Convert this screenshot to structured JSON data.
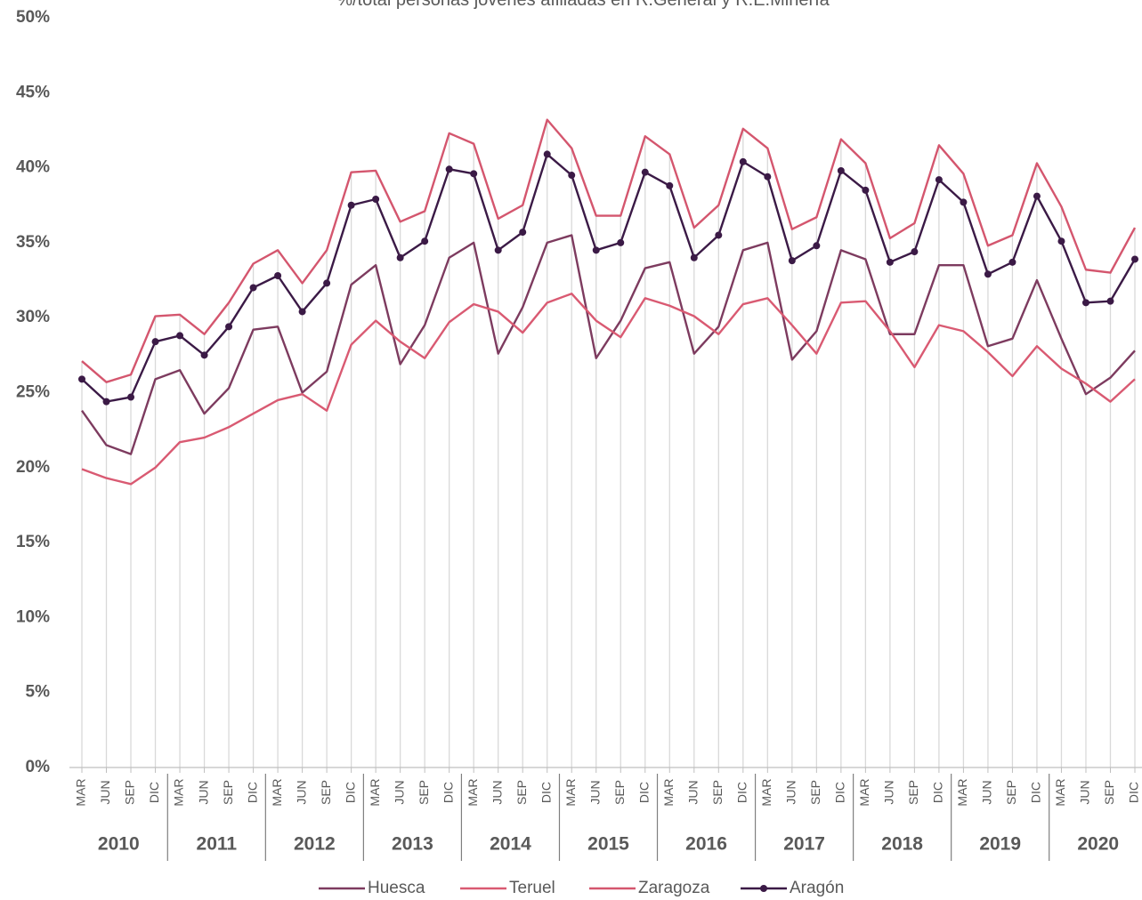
{
  "chart_data": {
    "type": "line",
    "title": "%/total personas jóvenes afiliadas en R.General y R.E.Minería",
    "categories": [
      "MAR",
      "JUN",
      "SEP",
      "DIC",
      "MAR",
      "JUN",
      "SEP",
      "DIC",
      "MAR",
      "JUN",
      "SEP",
      "DIC",
      "MAR",
      "JUN",
      "SEP",
      "DIC",
      "MAR",
      "JUN",
      "SEP",
      "DIC",
      "MAR",
      "JUN",
      "SEP",
      "DIC",
      "MAR",
      "JUN",
      "SEP",
      "DIC",
      "MAR",
      "JUN",
      "SEP",
      "DIC",
      "MAR",
      "JUN",
      "SEP",
      "DIC",
      "MAR",
      "JUN",
      "SEP",
      "DIC",
      "MAR",
      "JUN",
      "SEP",
      "DIC"
    ],
    "groups": [
      "2010",
      "2011",
      "2012",
      "2013",
      "2014",
      "2015",
      "2016",
      "2017",
      "2018",
      "2019",
      "2020"
    ],
    "series": [
      {
        "name": "Huesca",
        "color": "#7d3b5f",
        "values": [
          23.8,
          21.5,
          20.9,
          25.9,
          26.5,
          23.6,
          25.3,
          29.2,
          29.4,
          25.0,
          26.4,
          32.2,
          33.5,
          26.9,
          29.5,
          34.0,
          35.0,
          27.6,
          30.7,
          35.0,
          35.5,
          27.3,
          29.8,
          33.3,
          33.7,
          27.6,
          29.4,
          34.5,
          35.0,
          27.2,
          29.1,
          34.5,
          33.9,
          28.9,
          28.9,
          33.5,
          33.5,
          28.1,
          28.6,
          32.5,
          28.6,
          24.9,
          26.0,
          27.8
        ]
      },
      {
        "name": "Teruel",
        "color": "#d95a72",
        "values": [
          19.9,
          19.3,
          18.9,
          20.0,
          21.7,
          22.0,
          22.7,
          23.6,
          24.5,
          24.9,
          23.8,
          28.2,
          29.8,
          28.4,
          27.3,
          29.7,
          30.9,
          30.4,
          29.0,
          31.0,
          31.6,
          29.8,
          28.7,
          31.3,
          30.8,
          30.1,
          28.9,
          30.9,
          31.3,
          29.5,
          27.6,
          31.0,
          31.1,
          29.1,
          26.7,
          29.5,
          29.1,
          27.7,
          26.1,
          28.1,
          26.6,
          25.6,
          24.4,
          25.9
        ]
      },
      {
        "name": "Zaragoza",
        "color": "#d4566e",
        "values": [
          27.1,
          25.7,
          26.2,
          30.1,
          30.2,
          28.9,
          31.0,
          33.6,
          34.5,
          32.3,
          34.5,
          39.7,
          39.8,
          36.4,
          37.1,
          42.3,
          41.6,
          36.6,
          37.5,
          43.2,
          41.3,
          36.8,
          36.8,
          42.1,
          40.9,
          36.0,
          37.5,
          42.6,
          41.3,
          35.9,
          36.7,
          41.9,
          40.3,
          35.3,
          36.3,
          41.5,
          39.6,
          34.8,
          35.5,
          40.3,
          37.4,
          33.2,
          33.0,
          36.0
        ]
      },
      {
        "name": "Aragón",
        "color": "#3b1a46",
        "marker": true,
        "values": [
          25.9,
          24.4,
          24.7,
          28.4,
          28.8,
          27.5,
          29.4,
          32.0,
          32.8,
          30.4,
          32.3,
          37.5,
          37.9,
          34.0,
          35.1,
          39.9,
          39.6,
          34.5,
          35.7,
          40.9,
          39.5,
          34.5,
          35.0,
          39.7,
          38.8,
          34.0,
          35.5,
          40.4,
          39.4,
          33.8,
          34.8,
          39.8,
          38.5,
          33.7,
          34.4,
          39.2,
          37.7,
          32.9,
          33.7,
          38.1,
          35.1,
          31.0,
          31.1,
          33.9
        ]
      }
    ],
    "ylim": [
      0,
      50
    ],
    "yticks": [
      {
        "value": 0,
        "label": "0%"
      },
      {
        "value": 5,
        "label": "5%"
      },
      {
        "value": 10,
        "label": "10%"
      },
      {
        "value": 15,
        "label": "15%"
      },
      {
        "value": 20,
        "label": "20%"
      },
      {
        "value": 25,
        "label": "25%"
      },
      {
        "value": 30,
        "label": "30%"
      },
      {
        "value": 35,
        "label": "35%"
      },
      {
        "value": 40,
        "label": "40%"
      },
      {
        "value": 45,
        "label": "45%"
      },
      {
        "value": 50,
        "label": "50%"
      }
    ],
    "drop_lines": true,
    "legend": "bottom"
  }
}
